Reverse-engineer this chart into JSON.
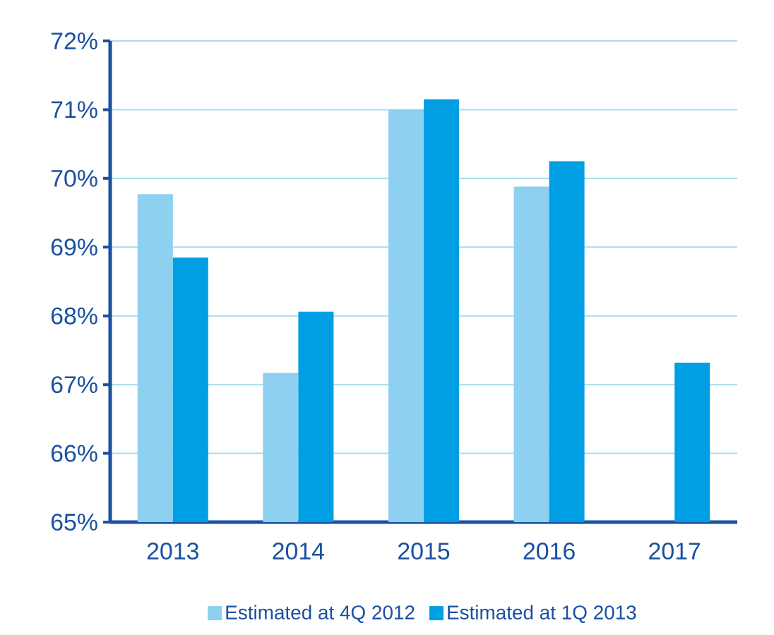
{
  "chart_data": {
    "type": "bar",
    "categories": [
      "2013",
      "2014",
      "2015",
      "2016",
      "2017"
    ],
    "series": [
      {
        "name": "Estimated at 4Q 2012",
        "color": "#8dd0f0",
        "values": [
          69.77,
          67.17,
          71.0,
          69.88,
          null
        ]
      },
      {
        "name": "Estimated at 1Q 2013",
        "color": "#009fe3",
        "values": [
          68.85,
          68.06,
          71.15,
          70.25,
          67.32
        ]
      }
    ],
    "ylim": [
      65,
      72
    ],
    "yticks": [
      {
        "value": 65,
        "label": "65%"
      },
      {
        "value": 66,
        "label": "66%"
      },
      {
        "value": 67,
        "label": "67%"
      },
      {
        "value": 68,
        "label": "68%"
      },
      {
        "value": 69,
        "label": "69%"
      },
      {
        "value": 70,
        "label": "70%"
      },
      {
        "value": 71,
        "label": "71%"
      },
      {
        "value": 72,
        "label": "72%"
      }
    ],
    "grid": "y",
    "legend": "bottom"
  }
}
